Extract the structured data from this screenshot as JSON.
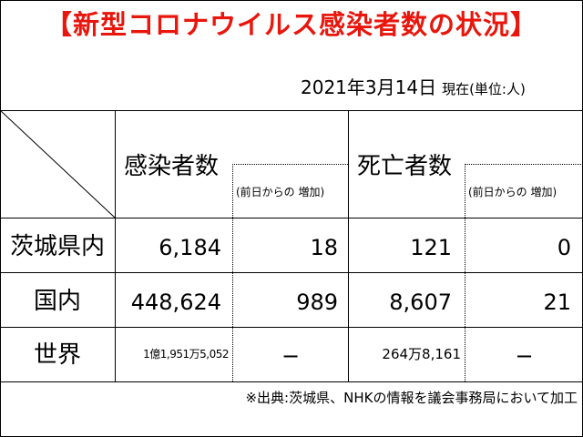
{
  "title": "【新型コロナウイルス感染者数の状況】",
  "date": "2021年3月14日",
  "date_note": "現在(単位:人)",
  "headers": {
    "infected": "感染者数",
    "infected_change": "(前日からの 増加)",
    "deaths": "死亡者数",
    "deaths_change": "(前日からの 増加)"
  },
  "rows": [
    {
      "label": "茨城県内",
      "infected": "6,184",
      "infected_change": "18",
      "deaths": "121",
      "deaths_change": "0"
    },
    {
      "label": "国内",
      "infected": "448,624",
      "infected_change": "989",
      "deaths": "8,607",
      "deaths_change": "21"
    },
    {
      "label": "世界",
      "infected": "1億1,951万5,052",
      "infected_change": "−",
      "deaths": "264万8,161",
      "deaths_change": "−"
    }
  ],
  "source_note": "※出典:茨城県、NHKの情報を議会事務局において加工"
}
